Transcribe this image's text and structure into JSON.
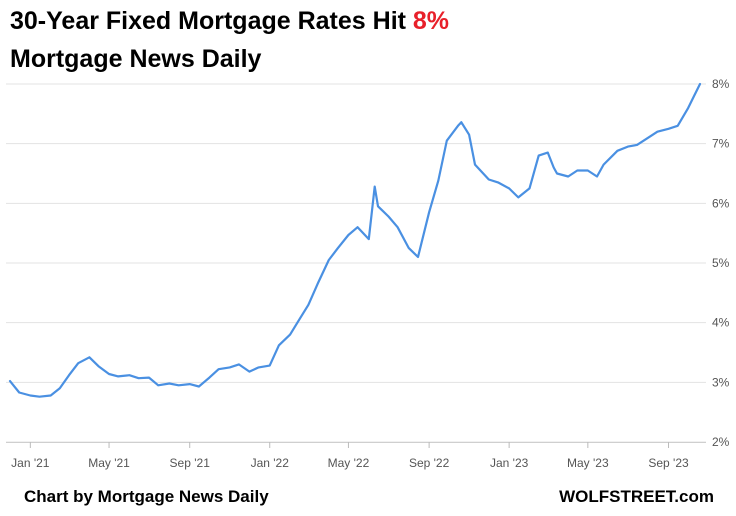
{
  "header": {
    "title_main": "30-Year Fixed Mortgage Rates Hit ",
    "title_highlight": "8%",
    "subtitle": "Mortgage News Daily"
  },
  "footer": {
    "credit": "Chart by Mortgage News Daily",
    "brand": "WOLFSTREET.com"
  },
  "colors": {
    "line": "#4a90e2",
    "highlight": "#e8202a",
    "grid": "#e3e3e3"
  },
  "chart_data": {
    "type": "line",
    "title": "30-Year Fixed Mortgage Rates Hit 8%",
    "subtitle": "Mortgage News Daily",
    "xlabel": "",
    "ylabel": "",
    "ylim": [
      2,
      8
    ],
    "grid": true,
    "y_ticks": [
      "2%",
      "3%",
      "4%",
      "5%",
      "6%",
      "7%",
      "8%"
    ],
    "x_ticks": [
      "Jan '21",
      "May '21",
      "Sep '21",
      "Jan '22",
      "May '22",
      "Sep '22",
      "Jan '23",
      "May '23",
      "Sep '23"
    ],
    "x": [
      "2020-12-01",
      "2020-12-15",
      "2021-01-01",
      "2021-01-15",
      "2021-02-01",
      "2021-02-15",
      "2021-03-01",
      "2021-03-15",
      "2021-04-01",
      "2021-04-15",
      "2021-05-01",
      "2021-05-15",
      "2021-06-01",
      "2021-06-15",
      "2021-07-01",
      "2021-07-15",
      "2021-08-01",
      "2021-08-15",
      "2021-09-01",
      "2021-09-15",
      "2021-10-01",
      "2021-10-15",
      "2021-11-01",
      "2021-11-15",
      "2021-12-01",
      "2021-12-15",
      "2022-01-01",
      "2022-01-15",
      "2022-02-01",
      "2022-02-15",
      "2022-03-01",
      "2022-03-15",
      "2022-04-01",
      "2022-04-15",
      "2022-05-01",
      "2022-05-15",
      "2022-06-01",
      "2022-06-10",
      "2022-06-15",
      "2022-07-01",
      "2022-07-15",
      "2022-08-01",
      "2022-08-15",
      "2022-09-01",
      "2022-09-15",
      "2022-09-28",
      "2022-10-15",
      "2022-10-20",
      "2022-11-01",
      "2022-11-10",
      "2022-12-01",
      "2022-12-15",
      "2023-01-01",
      "2023-01-15",
      "2023-02-01",
      "2023-02-15",
      "2023-03-01",
      "2023-03-10",
      "2023-03-15",
      "2023-04-01",
      "2023-04-15",
      "2023-05-01",
      "2023-05-15",
      "2023-05-25",
      "2023-06-15",
      "2023-07-01",
      "2023-07-15",
      "2023-08-01",
      "2023-08-15",
      "2023-09-01",
      "2023-09-15",
      "2023-10-01",
      "2023-10-10",
      "2023-10-19"
    ],
    "series": [
      {
        "values": [
          3.02,
          2.83,
          2.78,
          2.76,
          2.78,
          2.9,
          3.12,
          3.32,
          3.42,
          3.27,
          3.14,
          3.1,
          3.12,
          3.07,
          3.08,
          2.95,
          2.98,
          2.95,
          2.97,
          2.93,
          3.08,
          3.22,
          3.25,
          3.3,
          3.18,
          3.25,
          3.28,
          3.62,
          3.8,
          4.05,
          4.3,
          4.65,
          5.05,
          5.25,
          5.47,
          5.6,
          5.4,
          6.28,
          5.95,
          5.78,
          5.6,
          5.25,
          5.1,
          5.85,
          6.38,
          7.05,
          7.3,
          7.36,
          7.15,
          6.65,
          6.4,
          6.35,
          6.25,
          6.1,
          6.25,
          6.8,
          6.85,
          6.6,
          6.5,
          6.45,
          6.55,
          6.55,
          6.45,
          6.65,
          6.88,
          6.95,
          6.98,
          7.1,
          7.2,
          7.25,
          7.3,
          7.6,
          7.8,
          8.0
        ]
      }
    ]
  }
}
